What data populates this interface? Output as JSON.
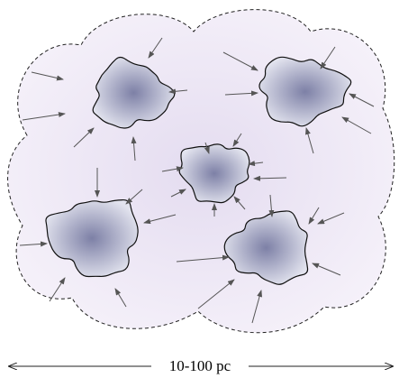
{
  "scale_bar": {
    "label": "10-100 pc"
  }
}
